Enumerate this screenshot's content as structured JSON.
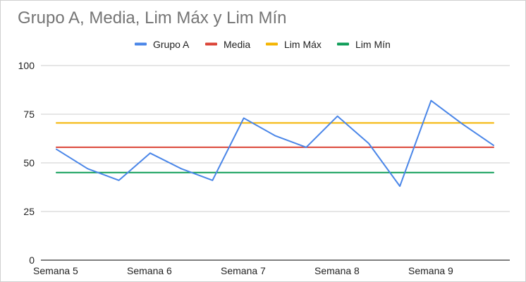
{
  "chart_data": {
    "type": "line",
    "title": "Grupo A, Media, Lim Máx y Lim Mín",
    "xlabel": "",
    "ylabel": "",
    "ylim": [
      0,
      100
    ],
    "yticks": [
      0,
      25,
      50,
      75,
      100
    ],
    "x_tick_labels": [
      "Semana 5",
      "Semana 6",
      "Semana 7",
      "Semana 8",
      "Semana 9"
    ],
    "grid": true,
    "legend": "top-center",
    "series": [
      {
        "name": "Grupo A",
        "color": "#4a86e8",
        "values": [
          57,
          47,
          41,
          55,
          47,
          41,
          73,
          64,
          58,
          74,
          60,
          38,
          82,
          70,
          59
        ]
      },
      {
        "name": "Media",
        "color": "#db4437",
        "values": [
          58,
          58,
          58,
          58,
          58,
          58,
          58,
          58,
          58,
          58,
          58,
          58,
          58,
          58,
          58
        ]
      },
      {
        "name": "Lim Máx",
        "color": "#f4b400",
        "values": [
          70.5,
          70.5,
          70.5,
          70.5,
          70.5,
          70.5,
          70.5,
          70.5,
          70.5,
          70.5,
          70.5,
          70.5,
          70.5,
          70.5,
          70.5
        ]
      },
      {
        "name": "Lim Mín",
        "color": "#0f9d58",
        "values": [
          45,
          45,
          45,
          45,
          45,
          45,
          45,
          45,
          45,
          45,
          45,
          45,
          45,
          45,
          45
        ]
      }
    ]
  }
}
